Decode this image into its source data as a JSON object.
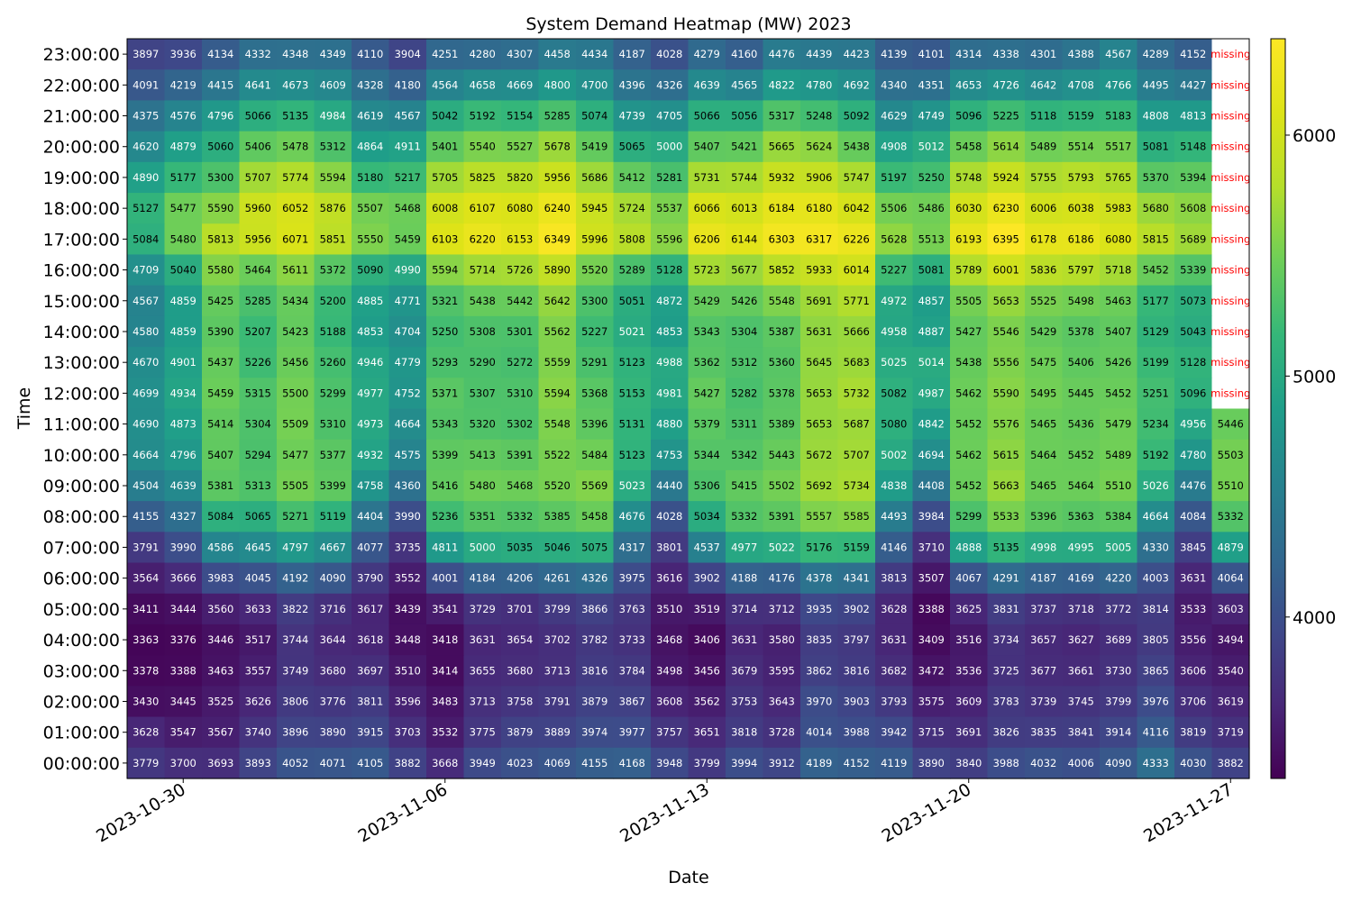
{
  "chart_data": {
    "type": "heatmap",
    "title": "System Demand Heatmap (MW) 2023",
    "xlabel": "Date",
    "ylabel": "Time",
    "colormap": "viridis",
    "color_range": [
      3330,
      6400
    ],
    "colorbar_ticks": [
      4000,
      5000,
      6000
    ],
    "missing_label": "missing",
    "missing_color": "#ffffff",
    "missing_text_color": "#ff0000",
    "x_tick_labels": [
      "2023-10-30",
      "2023-11-06",
      "2023-11-13",
      "2023-11-20",
      "2023-11-27"
    ],
    "x_tick_columns": [
      1,
      8,
      15,
      22,
      29
    ],
    "dates": [
      "2023-10-29",
      "2023-10-30",
      "2023-10-31",
      "2023-11-01",
      "2023-11-02",
      "2023-11-03",
      "2023-11-04",
      "2023-11-05",
      "2023-11-06",
      "2023-11-07",
      "2023-11-08",
      "2023-11-09",
      "2023-11-10",
      "2023-11-11",
      "2023-11-12",
      "2023-11-13",
      "2023-11-14",
      "2023-11-15",
      "2023-11-16",
      "2023-11-17",
      "2023-11-18",
      "2023-11-19",
      "2023-11-20",
      "2023-11-21",
      "2023-11-22",
      "2023-11-23",
      "2023-11-24",
      "2023-11-25",
      "2023-11-26",
      "2023-11-27"
    ],
    "times": [
      "23:00:00",
      "22:00:00",
      "21:00:00",
      "20:00:00",
      "19:00:00",
      "18:00:00",
      "17:00:00",
      "16:00:00",
      "15:00:00",
      "14:00:00",
      "13:00:00",
      "12:00:00",
      "11:00:00",
      "10:00:00",
      "09:00:00",
      "08:00:00",
      "07:00:00",
      "06:00:00",
      "05:00:00",
      "04:00:00",
      "03:00:00",
      "02:00:00",
      "01:00:00",
      "00:00:00"
    ],
    "values": [
      [
        3897,
        3936,
        4134,
        4332,
        4348,
        4349,
        4110,
        3904,
        4251,
        4280,
        4307,
        4458,
        4434,
        4187,
        4028,
        4279,
        4160,
        4476,
        4439,
        4423,
        4139,
        4101,
        4314,
        4338,
        4301,
        4388,
        4567,
        4289,
        4152,
        null
      ],
      [
        4091,
        4219,
        4415,
        4641,
        4673,
        4609,
        4328,
        4180,
        4564,
        4658,
        4669,
        4800,
        4700,
        4396,
        4326,
        4639,
        4565,
        4822,
        4780,
        4692,
        4340,
        4351,
        4653,
        4726,
        4642,
        4708,
        4766,
        4495,
        4427,
        null
      ],
      [
        4375,
        4576,
        4796,
        5066,
        5135,
        4984,
        4619,
        4567,
        5042,
        5192,
        5154,
        5285,
        5074,
        4739,
        4705,
        5066,
        5056,
        5317,
        5248,
        5092,
        4629,
        4749,
        5096,
        5225,
        5118,
        5159,
        5183,
        4808,
        4813,
        null
      ],
      [
        4620,
        4879,
        5060,
        5406,
        5478,
        5312,
        4864,
        4911,
        5401,
        5540,
        5527,
        5678,
        5419,
        5065,
        5000,
        5407,
        5421,
        5665,
        5624,
        5438,
        4908,
        5012,
        5458,
        5614,
        5489,
        5514,
        5517,
        5081,
        5148,
        null
      ],
      [
        4890,
        5177,
        5300,
        5707,
        5774,
        5594,
        5180,
        5217,
        5705,
        5825,
        5820,
        5956,
        5686,
        5412,
        5281,
        5731,
        5744,
        5932,
        5906,
        5747,
        5197,
        5250,
        5748,
        5924,
        5755,
        5793,
        5765,
        5370,
        5394,
        null
      ],
      [
        5127,
        5477,
        5590,
        5960,
        6052,
        5876,
        5507,
        5468,
        6008,
        6107,
        6080,
        6240,
        5945,
        5724,
        5537,
        6066,
        6013,
        6184,
        6180,
        6042,
        5506,
        5486,
        6030,
        6230,
        6006,
        6038,
        5983,
        5680,
        5608,
        null
      ],
      [
        5084,
        5480,
        5813,
        5956,
        6071,
        5851,
        5550,
        5459,
        6103,
        6220,
        6153,
        6349,
        5996,
        5808,
        5596,
        6206,
        6144,
        6303,
        6317,
        6226,
        5628,
        5513,
        6193,
        6395,
        6178,
        6186,
        6080,
        5815,
        5689,
        null
      ],
      [
        4709,
        5040,
        5580,
        5464,
        5611,
        5372,
        5090,
        4990,
        5594,
        5714,
        5726,
        5890,
        5520,
        5289,
        5128,
        5723,
        5677,
        5852,
        5933,
        6014,
        5227,
        5081,
        5789,
        6001,
        5836,
        5797,
        5718,
        5452,
        5339,
        null
      ],
      [
        4567,
        4859,
        5425,
        5285,
        5434,
        5200,
        4885,
        4771,
        5321,
        5438,
        5442,
        5642,
        5300,
        5051,
        4872,
        5429,
        5426,
        5548,
        5691,
        5771,
        4972,
        4857,
        5505,
        5653,
        5525,
        5498,
        5463,
        5177,
        5073,
        null
      ],
      [
        4580,
        4859,
        5390,
        5207,
        5423,
        5188,
        4853,
        4704,
        5250,
        5308,
        5301,
        5562,
        5227,
        5021,
        4853,
        5343,
        5304,
        5387,
        5631,
        5666,
        4958,
        4887,
        5427,
        5546,
        5429,
        5378,
        5407,
        5129,
        5043,
        null
      ],
      [
        4670,
        4901,
        5437,
        5226,
        5456,
        5260,
        4946,
        4779,
        5293,
        5290,
        5272,
        5559,
        5291,
        5123,
        4988,
        5362,
        5312,
        5360,
        5645,
        5683,
        5025,
        5014,
        5438,
        5556,
        5475,
        5406,
        5426,
        5199,
        5128,
        null
      ],
      [
        4699,
        4934,
        5459,
        5315,
        5500,
        5299,
        4977,
        4752,
        5371,
        5307,
        5310,
        5594,
        5368,
        5153,
        4981,
        5427,
        5282,
        5378,
        5653,
        5732,
        5082,
        4987,
        5462,
        5590,
        5495,
        5445,
        5452,
        5251,
        5096,
        null
      ],
      [
        4690,
        4873,
        5414,
        5304,
        5509,
        5310,
        4973,
        4664,
        5343,
        5320,
        5302,
        5548,
        5396,
        5131,
        4880,
        5379,
        5311,
        5389,
        5653,
        5687,
        5080,
        4842,
        5452,
        5576,
        5465,
        5436,
        5479,
        5234,
        4956,
        5446
      ],
      [
        4664,
        4796,
        5407,
        5294,
        5477,
        5377,
        4932,
        4575,
        5399,
        5413,
        5391,
        5522,
        5484,
        5123,
        4753,
        5344,
        5342,
        5443,
        5672,
        5707,
        5002,
        4694,
        5462,
        5615,
        5464,
        5452,
        5489,
        5192,
        4780,
        5503
      ],
      [
        4504,
        4639,
        5381,
        5313,
        5505,
        5399,
        4758,
        4360,
        5416,
        5480,
        5468,
        5520,
        5569,
        5023,
        4440,
        5306,
        5415,
        5502,
        5692,
        5734,
        4838,
        4408,
        5452,
        5663,
        5465,
        5464,
        5510,
        5026,
        4476,
        5510
      ],
      [
        4155,
        4327,
        5084,
        5065,
        5271,
        5119,
        4404,
        3990,
        5236,
        5351,
        5332,
        5385,
        5458,
        4676,
        4028,
        5034,
        5332,
        5391,
        5557,
        5585,
        4493,
        3984,
        5299,
        5533,
        5396,
        5363,
        5384,
        4664,
        4084,
        5332
      ],
      [
        3791,
        3990,
        4586,
        4645,
        4797,
        4667,
        4077,
        3735,
        4811,
        5000,
        5035,
        5046,
        5075,
        4317,
        3801,
        4537,
        4977,
        5022,
        5176,
        5159,
        4146,
        3710,
        4888,
        5135,
        4998,
        4995,
        5005,
        4330,
        3845,
        4879
      ],
      [
        3564,
        3666,
        3983,
        4045,
        4192,
        4090,
        3790,
        3552,
        4001,
        4184,
        4206,
        4261,
        4326,
        3975,
        3616,
        3902,
        4188,
        4176,
        4378,
        4341,
        3813,
        3507,
        4067,
        4291,
        4187,
        4169,
        4220,
        4003,
        3631,
        4064
      ],
      [
        3411,
        3444,
        3560,
        3633,
        3822,
        3716,
        3617,
        3439,
        3541,
        3729,
        3701,
        3799,
        3866,
        3763,
        3510,
        3519,
        3714,
        3712,
        3935,
        3902,
        3628,
        3388,
        3625,
        3831,
        3737,
        3718,
        3772,
        3814,
        3533,
        3603
      ],
      [
        3363,
        3376,
        3446,
        3517,
        3744,
        3644,
        3618,
        3448,
        3418,
        3631,
        3654,
        3702,
        3782,
        3733,
        3468,
        3406,
        3631,
        3580,
        3835,
        3797,
        3631,
        3409,
        3516,
        3734,
        3657,
        3627,
        3689,
        3805,
        3556,
        3494
      ],
      [
        3378,
        3388,
        3463,
        3557,
        3749,
        3680,
        3697,
        3510,
        3414,
        3655,
        3680,
        3713,
        3816,
        3784,
        3498,
        3456,
        3679,
        3595,
        3862,
        3816,
        3682,
        3472,
        3536,
        3725,
        3677,
        3661,
        3730,
        3865,
        3606,
        3540
      ],
      [
        3430,
        3445,
        3525,
        3626,
        3806,
        3776,
        3811,
        3596,
        3483,
        3713,
        3758,
        3791,
        3879,
        3867,
        3608,
        3562,
        3753,
        3643,
        3970,
        3903,
        3793,
        3575,
        3609,
        3783,
        3739,
        3745,
        3799,
        3976,
        3706,
        3619
      ],
      [
        3628,
        3547,
        3567,
        3740,
        3896,
        3890,
        3915,
        3703,
        3532,
        3775,
        3879,
        3889,
        3974,
        3977,
        3757,
        3651,
        3818,
        3728,
        4014,
        3988,
        3942,
        3715,
        3691,
        3826,
        3835,
        3841,
        3914,
        4116,
        3819,
        3719
      ],
      [
        3779,
        3700,
        3693,
        3893,
        4052,
        4071,
        4105,
        3882,
        3668,
        3949,
        4023,
        4069,
        4155,
        4168,
        3948,
        3799,
        3994,
        3912,
        4189,
        4152,
        4119,
        3890,
        3840,
        3988,
        4032,
        4006,
        4090,
        4333,
        4030,
        3882
      ]
    ]
  }
}
